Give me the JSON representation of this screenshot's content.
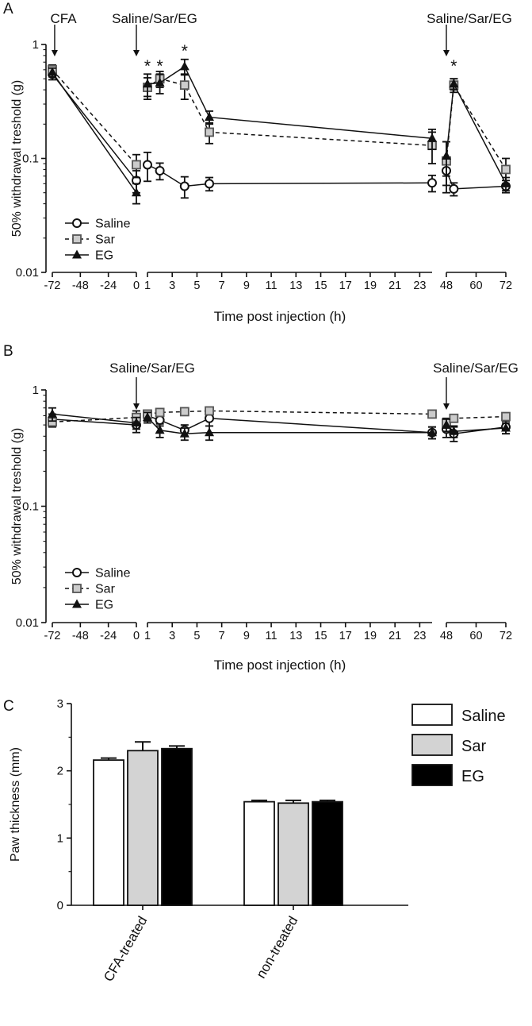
{
  "chart_data": [
    {
      "panel_label": "A",
      "type": "line",
      "ylabel": "50% withdrawal treshold (g)",
      "xlabel": "Time post injection (h)",
      "yscale": "log",
      "ylim": [
        0.01,
        1
      ],
      "yticks": [
        {
          "value": 0.01,
          "label": "0.01"
        },
        {
          "value": 0.1,
          "label": "0.1"
        },
        {
          "value": 1,
          "label": "1"
        }
      ],
      "x_segments": [
        {
          "range": [
            -72,
            0
          ],
          "ticks": [
            {
              "value": -72,
              "label": "-72"
            },
            {
              "value": -48,
              "label": "-48"
            },
            {
              "value": -24,
              "label": "-24"
            },
            {
              "value": 0,
              "label": "0"
            }
          ]
        },
        {
          "range": [
            1,
            24
          ],
          "ticks": [
            {
              "value": 1,
              "label": "1"
            },
            {
              "value": 3,
              "label": "3"
            },
            {
              "value": 5,
              "label": "5"
            },
            {
              "value": 7,
              "label": "7"
            },
            {
              "value": 9,
              "label": "9"
            },
            {
              "value": 11,
              "label": "11"
            },
            {
              "value": 13,
              "label": "13"
            },
            {
              "value": 15,
              "label": "15"
            },
            {
              "value": 17,
              "label": "17"
            },
            {
              "value": 19,
              "label": "19"
            },
            {
              "value": 21,
              "label": "21"
            },
            {
              "value": 23,
              "label": "23"
            }
          ]
        },
        {
          "range": [
            48,
            72
          ],
          "ticks": [
            {
              "value": 48,
              "label": "48"
            },
            {
              "value": 60,
              "label": "60"
            },
            {
              "value": 72,
              "label": "72"
            }
          ]
        }
      ],
      "arrows": [
        {
          "x": -70,
          "label": "CFA"
        },
        {
          "x": 0,
          "label": "Saline/Sar/EG"
        },
        {
          "x": 48,
          "label": "Saline/Sar/EG"
        }
      ],
      "significance": [
        {
          "x": 1,
          "y": 0.7,
          "label": "*"
        },
        {
          "x": 2,
          "y": 0.7,
          "label": "*"
        },
        {
          "x": 4,
          "y": 0.95,
          "label": "*"
        },
        {
          "x": 51,
          "y": 0.7,
          "label": "*"
        }
      ],
      "legend": {
        "position": "bottom-left",
        "entries": [
          "Saline",
          "Sar",
          "EG"
        ]
      },
      "series": [
        {
          "name": "Saline",
          "marker": "circle",
          "line": "solid",
          "segments": [
            {
              "points": [
                {
                  "x": -72,
                  "y": 0.55,
                  "err": 0.06
                },
                {
                  "x": 0,
                  "y": 0.064,
                  "err": 0.014
                }
              ]
            },
            {
              "points": [
                {
                  "x": 1,
                  "y": 0.088,
                  "err": 0.025
                },
                {
                  "x": 2,
                  "y": 0.078,
                  "err": 0.013
                },
                {
                  "x": 4,
                  "y": 0.057,
                  "err": 0.012
                },
                {
                  "x": 6,
                  "y": 0.06,
                  "err": 0.008
                },
                {
                  "x": 24,
                  "y": 0.061,
                  "err": 0.01
                }
              ]
            },
            {
              "points": [
                {
                  "x": 48,
                  "y": 0.078,
                  "err": 0.02
                },
                {
                  "x": 51,
                  "y": 0.054,
                  "err": 0.007
                },
                {
                  "x": 72,
                  "y": 0.057,
                  "err": 0.007
                }
              ]
            }
          ]
        },
        {
          "name": "Sar",
          "marker": "square",
          "line": "dashed",
          "segments": [
            {
              "points": [
                {
                  "x": -72,
                  "y": 0.6,
                  "err": 0.06
                },
                {
                  "x": 0,
                  "y": 0.088,
                  "err": 0.02
                }
              ]
            },
            {
              "points": [
                {
                  "x": 1,
                  "y": 0.42,
                  "err": 0.09
                },
                {
                  "x": 2,
                  "y": 0.5,
                  "err": 0.08
                },
                {
                  "x": 4,
                  "y": 0.44,
                  "err": 0.11
                },
                {
                  "x": 6,
                  "y": 0.17,
                  "err": 0.035
                },
                {
                  "x": 24,
                  "y": 0.13,
                  "err": 0.04
                }
              ]
            },
            {
              "points": [
                {
                  "x": 48,
                  "y": 0.095,
                  "err": 0.045
                },
                {
                  "x": 51,
                  "y": 0.44,
                  "err": 0.06
                },
                {
                  "x": 72,
                  "y": 0.08,
                  "err": 0.02
                }
              ]
            }
          ]
        },
        {
          "name": "EG",
          "marker": "triangle",
          "line": "solid",
          "segments": [
            {
              "points": [
                {
                  "x": -72,
                  "y": 0.57,
                  "err": 0.05
                },
                {
                  "x": 0,
                  "y": 0.05,
                  "err": 0.01
                }
              ]
            },
            {
              "points": [
                {
                  "x": 1,
                  "y": 0.45,
                  "err": 0.1
                },
                {
                  "x": 2,
                  "y": 0.46,
                  "err": 0.09
                },
                {
                  "x": 4,
                  "y": 0.64,
                  "err": 0.1
                },
                {
                  "x": 6,
                  "y": 0.23,
                  "err": 0.03
                },
                {
                  "x": 24,
                  "y": 0.15,
                  "err": 0.03
                }
              ]
            },
            {
              "points": [
                {
                  "x": 48,
                  "y": 0.105,
                  "err": 0.035
                },
                {
                  "x": 51,
                  "y": 0.45,
                  "err": 0.05
                },
                {
                  "x": 72,
                  "y": 0.06,
                  "err": 0.008
                }
              ]
            }
          ]
        }
      ]
    },
    {
      "panel_label": "B",
      "type": "line",
      "ylabel": "50% withdrawal treshold (g)",
      "xlabel": "Time post injection (h)",
      "yscale": "log",
      "ylim": [
        0.01,
        1
      ],
      "yticks": [
        {
          "value": 0.01,
          "label": "0.01"
        },
        {
          "value": 0.1,
          "label": "0.1"
        },
        {
          "value": 1,
          "label": "1"
        }
      ],
      "x_segments": [
        {
          "range": [
            -72,
            0
          ],
          "ticks": [
            {
              "value": -72,
              "label": "-72"
            },
            {
              "value": -48,
              "label": "-48"
            },
            {
              "value": -24,
              "label": "-24"
            },
            {
              "value": 0,
              "label": "0"
            }
          ]
        },
        {
          "range": [
            1,
            24
          ],
          "ticks": [
            {
              "value": 1,
              "label": "1"
            },
            {
              "value": 3,
              "label": "3"
            },
            {
              "value": 5,
              "label": "5"
            },
            {
              "value": 7,
              "label": "7"
            },
            {
              "value": 9,
              "label": "9"
            },
            {
              "value": 11,
              "label": "11"
            },
            {
              "value": 13,
              "label": "13"
            },
            {
              "value": 15,
              "label": "15"
            },
            {
              "value": 17,
              "label": "17"
            },
            {
              "value": 19,
              "label": "19"
            },
            {
              "value": 21,
              "label": "21"
            },
            {
              "value": 23,
              "label": "23"
            }
          ]
        },
        {
          "range": [
            48,
            72
          ],
          "ticks": [
            {
              "value": 48,
              "label": "48"
            },
            {
              "value": 60,
              "label": "60"
            },
            {
              "value": 72,
              "label": "72"
            }
          ]
        }
      ],
      "arrows": [
        {
          "x": 0,
          "label": "Saline/Sar/EG"
        },
        {
          "x": 48,
          "label": "Saline/Sar/EG"
        }
      ],
      "significance": [],
      "legend": {
        "position": "bottom-left",
        "entries": [
          "Saline",
          "Sar",
          "EG"
        ]
      },
      "series": [
        {
          "name": "Saline",
          "marker": "circle",
          "line": "solid",
          "segments": [
            {
              "points": [
                {
                  "x": -72,
                  "y": 0.56,
                  "err": 0.06
                },
                {
                  "x": 0,
                  "y": 0.5,
                  "err": 0.07
                }
              ]
            },
            {
              "points": [
                {
                  "x": 1,
                  "y": 0.6,
                  "err": 0.06
                },
                {
                  "x": 2,
                  "y": 0.55,
                  "err": 0.06
                },
                {
                  "x": 4,
                  "y": 0.45,
                  "err": 0.05
                },
                {
                  "x": 6,
                  "y": 0.57,
                  "err": 0.08
                },
                {
                  "x": 24,
                  "y": 0.43,
                  "err": 0.05
                }
              ]
            },
            {
              "points": [
                {
                  "x": 48,
                  "y": 0.46,
                  "err": 0.07
                },
                {
                  "x": 51,
                  "y": 0.42,
                  "err": 0.06
                },
                {
                  "x": 72,
                  "y": 0.48,
                  "err": 0.06
                }
              ]
            }
          ]
        },
        {
          "name": "Sar",
          "marker": "square",
          "line": "dashed",
          "segments": [
            {
              "points": [
                {
                  "x": -72,
                  "y": 0.53,
                  "err": 0.05
                },
                {
                  "x": 0,
                  "y": 0.58,
                  "err": 0.08
                }
              ]
            },
            {
              "points": [
                {
                  "x": 1,
                  "y": 0.62,
                  "err": 0.05
                },
                {
                  "x": 2,
                  "y": 0.64,
                  "err": 0.04
                },
                {
                  "x": 4,
                  "y": 0.65,
                  "err": 0.04
                },
                {
                  "x": 6,
                  "y": 0.66,
                  "err": 0.05
                },
                {
                  "x": 24,
                  "y": 0.62,
                  "err": 0.04
                }
              ]
            },
            {
              "points": [
                {
                  "x": 48,
                  "y": 0.52,
                  "err": 0.05
                },
                {
                  "x": 51,
                  "y": 0.57,
                  "err": 0.04
                },
                {
                  "x": 72,
                  "y": 0.59,
                  "err": 0.04
                }
              ]
            }
          ]
        },
        {
          "name": "EG",
          "marker": "triangle",
          "line": "solid",
          "segments": [
            {
              "points": [
                {
                  "x": -72,
                  "y": 0.62,
                  "err": 0.08
                },
                {
                  "x": 0,
                  "y": 0.52,
                  "err": 0.06
                }
              ]
            },
            {
              "points": [
                {
                  "x": 1,
                  "y": 0.58,
                  "err": 0.06
                },
                {
                  "x": 2,
                  "y": 0.45,
                  "err": 0.06
                },
                {
                  "x": 4,
                  "y": 0.42,
                  "err": 0.05
                },
                {
                  "x": 6,
                  "y": 0.43,
                  "err": 0.06
                },
                {
                  "x": 24,
                  "y": 0.43,
                  "err": 0.05
                }
              ]
            },
            {
              "points": [
                {
                  "x": 48,
                  "y": 0.5,
                  "err": 0.06
                },
                {
                  "x": 51,
                  "y": 0.44,
                  "err": 0.05
                },
                {
                  "x": 72,
                  "y": 0.47,
                  "err": 0.05
                }
              ]
            }
          ]
        }
      ]
    },
    {
      "panel_label": "C",
      "type": "bar",
      "ylabel": "Paw thickness (mm)",
      "xlabel": "",
      "ylim": [
        0,
        3
      ],
      "yticks": [
        {
          "value": 0,
          "label": "0"
        },
        {
          "value": 1,
          "label": "1"
        },
        {
          "value": 2,
          "label": "2"
        },
        {
          "value": 3,
          "label": "3"
        }
      ],
      "categories": [
        "CFA-treated",
        "non-treated"
      ],
      "legend": {
        "position": "top-right",
        "entries": [
          "Saline",
          "Sar",
          "EG"
        ]
      },
      "series": [
        {
          "name": "Saline",
          "color": "#ffffff",
          "values": [
            2.16,
            1.54
          ],
          "errors": [
            0.03,
            0.02
          ]
        },
        {
          "name": "Sar",
          "color": "#d3d3d3",
          "values": [
            2.3,
            1.52
          ],
          "errors": [
            0.13,
            0.04
          ]
        },
        {
          "name": "EG",
          "color": "#000000",
          "values": [
            2.33,
            1.54
          ],
          "errors": [
            0.04,
            0.02
          ]
        }
      ]
    }
  ]
}
